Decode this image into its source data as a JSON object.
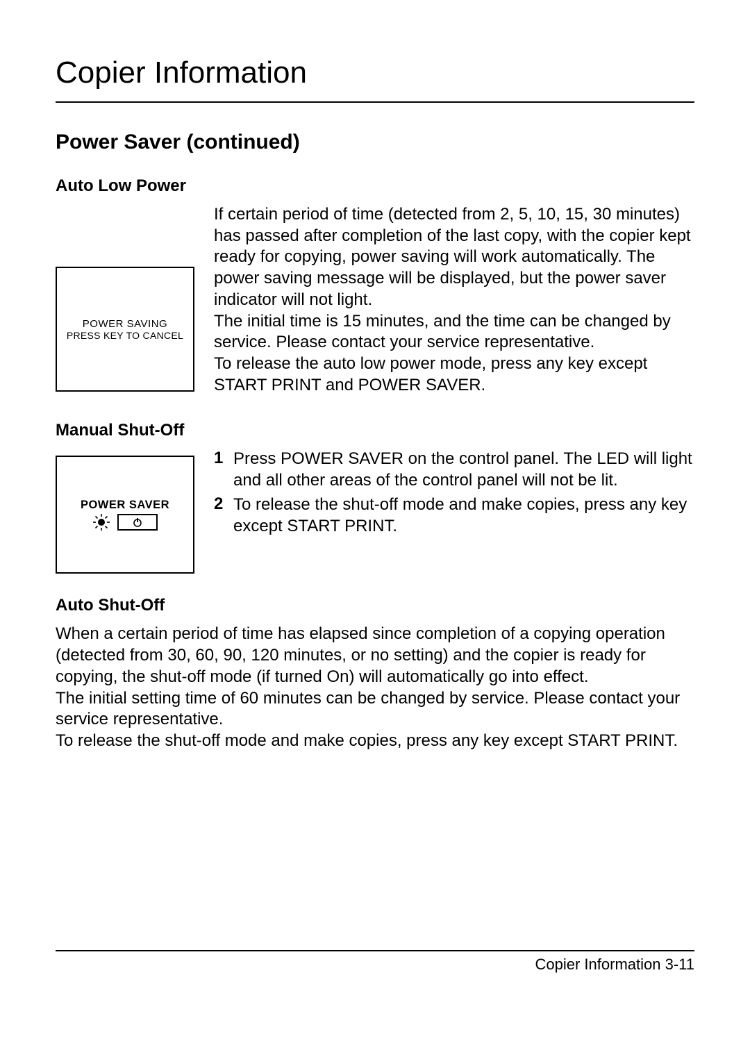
{
  "page_title": "Copier Information",
  "section_title": "Power Saver (continued)",
  "section1": {
    "subtitle": "Auto Low Power",
    "display_line1": "POWER SAVING",
    "display_line2": "PRESS KEY TO CANCEL",
    "body": "If certain period of time (detected from 2, 5, 10, 15, 30 minutes) has passed after completion of the last copy, with the copier kept ready for copying, power saving will work automatically. The power saving message will be displayed, but the power saver indicator will not light.\nThe initial time is 15 minutes, and the time can be changed by service. Please contact your service representative.\nTo release the auto low power mode, press any key except START PRINT and POWER SAVER."
  },
  "section2": {
    "subtitle": "Manual Shut-Off",
    "button_label": "POWER SAVER",
    "steps": [
      {
        "num": "1",
        "text": "Press POWER SAVER on the control panel. The LED will light and all other areas of the control panel will not be lit."
      },
      {
        "num": "2",
        "text": "To release the shut-off mode and make copies, press any key except START PRINT."
      }
    ]
  },
  "section3": {
    "subtitle": "Auto Shut-Off",
    "body": "When a certain period of time has elapsed since completion of a copying operation (detected from 30, 60, 90, 120 minutes, or no setting) and the copier is ready for copying, the shut-off mode (if turned On) will automatically go into effect.\nThe initial setting time of 60 minutes can be changed by service. Please contact your service representative.\nTo release the shut-off mode and make copies, press any key except START PRINT."
  },
  "footer_text": "Copier Information 3-11",
  "colors": {
    "bg": "#ffffff",
    "text": "#000000",
    "rule": "#000000",
    "border": "#000000"
  }
}
